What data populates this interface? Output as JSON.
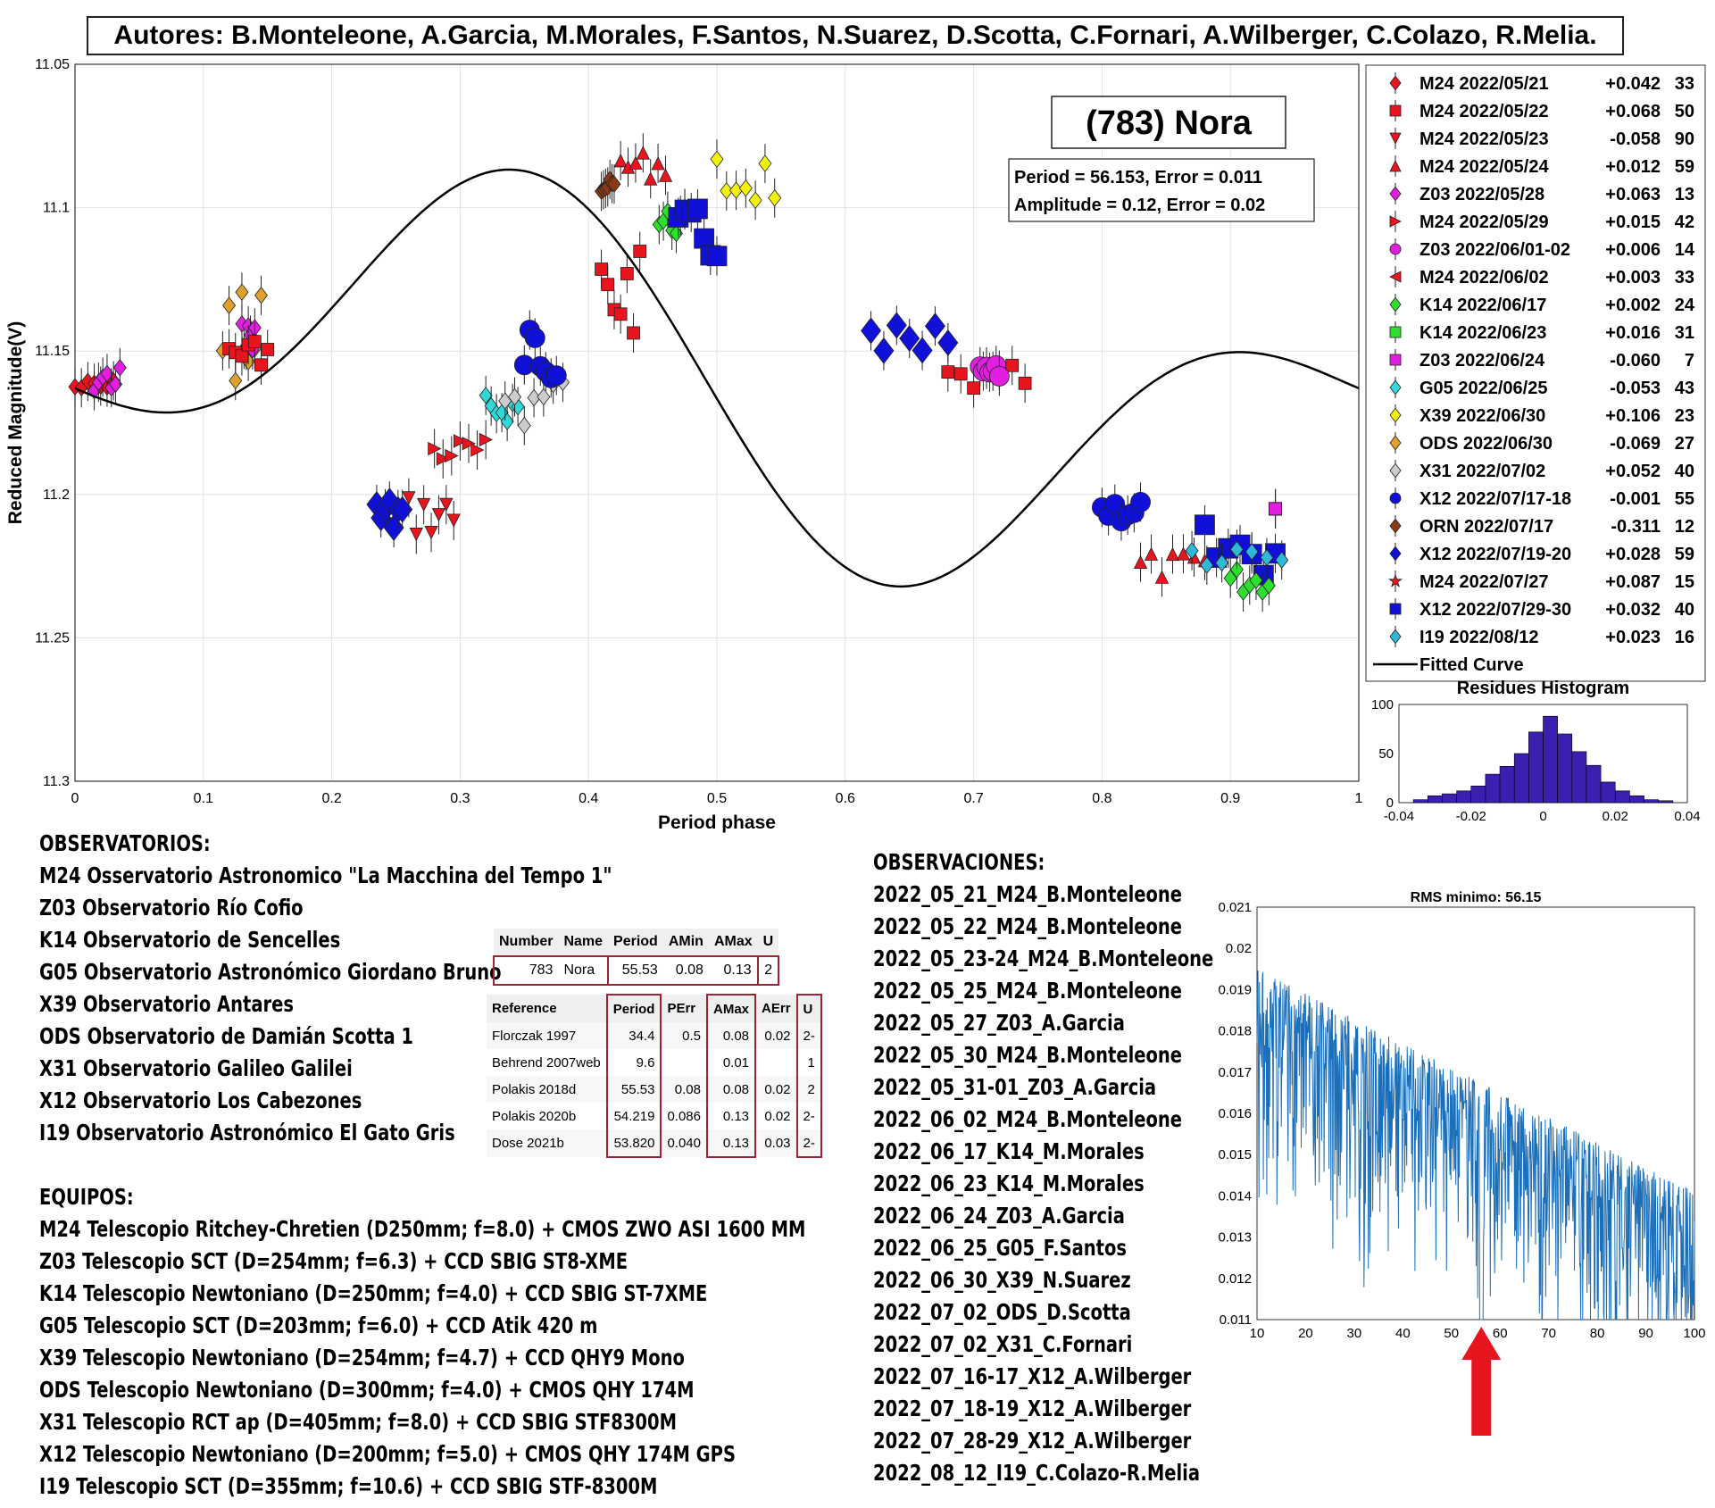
{
  "authors": "Autores: B.Monteleone, A.Garcia, M.Morales, F.Santos, N.Suarez, D.Scotta, C.Fornari, A.Wilberger, C.Colazo, R.Melia.",
  "chart_data": [
    {
      "type": "scatter",
      "title": "(783) Nora",
      "period_text": "Period =  56.153, Error = 0.011",
      "amplitude_text": "Amplitude = 0.12, Error = 0.02",
      "xlabel": "Period phase",
      "ylabel": "Reduced Magnitude(V)",
      "xlim": [
        0,
        1
      ],
      "ylim": [
        11.05,
        11.3
      ],
      "y_inverted": true,
      "x_ticks": [
        "0",
        "0.1",
        "0.2",
        "0.3",
        "0.4",
        "0.5",
        "0.6",
        "0.7",
        "0.8",
        "0.9",
        "1"
      ],
      "y_ticks": [
        "11.05",
        "11.1",
        "11.15",
        "11.2",
        "11.25",
        "11.3"
      ],
      "grid": true,
      "legend_position": "top-right",
      "legend": [
        {
          "label": "M24 2022/05/21",
          "offset": "+0.042",
          "n": "33",
          "color": "#e8141e",
          "marker": "diamond"
        },
        {
          "label": "M24 2022/05/22",
          "offset": "+0.068",
          "n": "50",
          "color": "#e8141e",
          "marker": "square"
        },
        {
          "label": "M24 2022/05/23",
          "offset": "-0.058",
          "n": "90",
          "color": "#e8141e",
          "marker": "tri-down"
        },
        {
          "label": "M24 2022/05/24",
          "offset": "+0.012",
          "n": "59",
          "color": "#e8141e",
          "marker": "tri-up"
        },
        {
          "label": "Z03 2022/05/28",
          "offset": "+0.063",
          "n": "13",
          "color": "#e21fe0",
          "marker": "diamond"
        },
        {
          "label": "M24 2022/05/29",
          "offset": "+0.015",
          "n": "42",
          "color": "#e8141e",
          "marker": "tri-right"
        },
        {
          "label": "Z03 2022/06/01-02",
          "offset": "+0.006",
          "n": "14",
          "color": "#e21fe0",
          "marker": "circle"
        },
        {
          "label": "M24 2022/06/02",
          "offset": "+0.003",
          "n": "33",
          "color": "#e8141e",
          "marker": "tri-left"
        },
        {
          "label": "K14 2022/06/17",
          "offset": "+0.002",
          "n": "24",
          "color": "#2ee02e",
          "marker": "diamond"
        },
        {
          "label": "K14 2022/06/23",
          "offset": "+0.016",
          "n": "31",
          "color": "#2ee02e",
          "marker": "square"
        },
        {
          "label": "Z03 2022/06/24",
          "offset": "-0.060",
          "n": "7",
          "color": "#e21fe0",
          "marker": "square"
        },
        {
          "label": "G05 2022/06/25",
          "offset": "-0.053",
          "n": "43",
          "color": "#30d8d8",
          "marker": "diamond"
        },
        {
          "label": "X39 2022/06/30",
          "offset": "+0.106",
          "n": "23",
          "color": "#f2f20a",
          "marker": "diamond"
        },
        {
          "label": "ODS 2022/06/30",
          "offset": "-0.069",
          "n": "27",
          "color": "#e0a030",
          "marker": "diamond"
        },
        {
          "label": "X31 2022/07/02",
          "offset": "+0.052",
          "n": "40",
          "color": "#cccccc",
          "marker": "diamond"
        },
        {
          "label": "X12 2022/07/17-18",
          "offset": "-0.001",
          "n": "55",
          "color": "#1010d8",
          "marker": "circle"
        },
        {
          "label": "ORN 2022/07/17",
          "offset": "-0.311",
          "n": "12",
          "color": "#8b3a16",
          "marker": "diamond"
        },
        {
          "label": "X12 2022/07/19-20",
          "offset": "+0.028",
          "n": "59",
          "color": "#1010d8",
          "marker": "diamond"
        },
        {
          "label": "M24 2022/07/27",
          "offset": "+0.087",
          "n": "15",
          "color": "#e8141e",
          "marker": "star"
        },
        {
          "label": "X12 2022/07/29-30",
          "offset": "+0.032",
          "n": "40",
          "color": "#1010d8",
          "marker": "square"
        },
        {
          "label": "I19 2022/08/12",
          "offset": "+0.023",
          "n": "16",
          "color": "#30b8d8",
          "marker": "diamond"
        }
      ],
      "fitted_curve_label": "Fitted Curve",
      "observation_clusters": [
        {
          "series": 0,
          "x": [
            0.0,
            0.03
          ],
          "y": [
            11.16,
            11.165
          ]
        },
        {
          "series": 4,
          "x": [
            0.015,
            0.035
          ],
          "y": [
            11.155,
            11.165
          ]
        },
        {
          "series": 13,
          "x": [
            0.115,
            0.145
          ],
          "y": [
            11.12,
            11.18
          ]
        },
        {
          "series": 4,
          "x": [
            0.13,
            0.14
          ],
          "y": [
            11.14,
            11.15
          ]
        },
        {
          "series": 1,
          "x": [
            0.12,
            0.15
          ],
          "y": [
            11.145,
            11.155
          ]
        },
        {
          "series": 17,
          "x": [
            0.235,
            0.255
          ],
          "y": [
            11.2,
            11.215
          ]
        },
        {
          "series": 2,
          "x": [
            0.26,
            0.295
          ],
          "y": [
            11.2,
            11.215
          ]
        },
        {
          "series": 5,
          "x": [
            0.28,
            0.32
          ],
          "y": [
            11.18,
            11.19
          ]
        },
        {
          "series": 11,
          "x": [
            0.32,
            0.345
          ],
          "y": [
            11.165,
            11.175
          ]
        },
        {
          "series": 14,
          "x": [
            0.335,
            0.38
          ],
          "y": [
            11.155,
            11.18
          ]
        },
        {
          "series": 15,
          "x": [
            0.35,
            0.375
          ],
          "y": [
            11.14,
            11.16
          ]
        },
        {
          "series": 16,
          "x": [
            0.41,
            0.42
          ],
          "y": [
            11.09,
            11.095
          ]
        },
        {
          "series": 1,
          "x": [
            0.41,
            0.44
          ],
          "y": [
            11.115,
            11.145
          ]
        },
        {
          "series": 3,
          "x": [
            0.425,
            0.46
          ],
          "y": [
            11.08,
            11.09
          ]
        },
        {
          "series": 8,
          "x": [
            0.455,
            0.475
          ],
          "y": [
            11.1,
            11.11
          ]
        },
        {
          "series": 12,
          "x": [
            0.5,
            0.545
          ],
          "y": [
            11.08,
            11.1
          ]
        },
        {
          "series": 19,
          "x": [
            0.47,
            0.5
          ],
          "y": [
            11.1,
            11.12
          ]
        },
        {
          "series": 17,
          "x": [
            0.62,
            0.68
          ],
          "y": [
            11.14,
            11.16
          ]
        },
        {
          "series": 1,
          "x": [
            0.68,
            0.74
          ],
          "y": [
            11.155,
            11.165
          ]
        },
        {
          "series": 6,
          "x": [
            0.705,
            0.72
          ],
          "y": [
            11.155,
            11.16
          ]
        },
        {
          "series": 15,
          "x": [
            0.8,
            0.83
          ],
          "y": [
            11.2,
            11.21
          ]
        },
        {
          "series": 3,
          "x": [
            0.83,
            0.88
          ],
          "y": [
            11.22,
            11.23
          ]
        },
        {
          "series": 19,
          "x": [
            0.88,
            0.935
          ],
          "y": [
            11.21,
            11.23
          ]
        },
        {
          "series": 8,
          "x": [
            0.9,
            0.93
          ],
          "y": [
            11.225,
            11.235
          ]
        },
        {
          "series": 20,
          "x": [
            0.87,
            0.94
          ],
          "y": [
            11.215,
            11.225
          ]
        },
        {
          "series": 10,
          "x": [
            0.935,
            0.935
          ],
          "y": [
            11.205,
            11.205
          ]
        }
      ]
    },
    {
      "type": "bar",
      "title": "Residues Histogram",
      "xlim": [
        -0.04,
        0.04
      ],
      "ylim": [
        0,
        100
      ],
      "x_ticks": [
        "-0.04",
        "-0.02",
        "0",
        "0.02",
        "0.04"
      ],
      "y_ticks": [
        "0",
        "50",
        "100"
      ],
      "color": "#3a1fb0",
      "bin_width": 0.004,
      "bins": [
        -0.034,
        -0.03,
        -0.026,
        -0.022,
        -0.018,
        -0.014,
        -0.01,
        -0.006,
        -0.002,
        0.002,
        0.006,
        0.01,
        0.014,
        0.018,
        0.022,
        0.026,
        0.03,
        0.034
      ],
      "values": [
        3,
        7,
        9,
        12,
        17,
        29,
        37,
        50,
        72,
        88,
        70,
        52,
        38,
        21,
        12,
        7,
        3,
        2
      ]
    },
    {
      "type": "line",
      "title": "RMS minimo: 56.15",
      "xlim": [
        10,
        100
      ],
      "ylim": [
        0.011,
        0.021
      ],
      "x_ticks": [
        "10",
        "20",
        "30",
        "40",
        "50",
        "60",
        "70",
        "80",
        "90",
        "100"
      ],
      "y_ticks": [
        "0.011",
        "0.012",
        "0.013",
        "0.014",
        "0.015",
        "0.016",
        "0.017",
        "0.018",
        "0.019",
        "0.02",
        "0.021"
      ],
      "color": "#1a6fba",
      "minimum_x": 56.15,
      "arrow_color": "#e8141e"
    }
  ],
  "observatorios": {
    "heading": "OBSERVATORIOS:",
    "items": [
      "M24 Osservatorio Astronomico \"La Macchina del Tempo 1\"",
      "Z03 Observatorio Río Cofio",
      "K14 Observatorio de Sencelles",
      "G05 Observatorio Astronómico Giordano Bruno",
      "X39 Observatorio Antares",
      "ODS Observatorio de Damián Scotta 1",
      "X31 Observatorio Galileo Galilei",
      "X12 Observatorio Los Cabezones",
      "I19 Observatorio Astronómico El Gato Gris"
    ]
  },
  "equipos": {
    "heading": "EQUIPOS:",
    "items": [
      "M24 Telescopio Ritchey-Chretien (D250mm; f=8.0) + CMOS ZWO ASI 1600 MM",
      "Z03 Telescopio SCT (D=254mm; f=6.3) + CCD SBIG ST8-XME",
      "K14 Telescopio Newtoniano (D=250mm; f=4.0) + CCD SBIG ST-7XME",
      "G05 Telescopio SCT (D=203mm; f=6.0) + CCD Atik 420 m",
      "X39 Telescopio Newtoniano (D=254mm; f=4.7) + CCD QHY9 Mono",
      "ODS Telescopio Newtoniano (D=300mm; f=4.0) + CMOS QHY 174M",
      "X31 Telescopio RCT ap (D=405mm; f=8.0) + CCD SBIG STF8300M",
      "X12 Telescopio Newtoniano (D=200mm; f=5.0) + CMOS QHY 174M GPS",
      "I19 Telescopio SCT (D=355mm; f=10.6) + CCD SBIG STF-8300M"
    ]
  },
  "observaciones": {
    "heading": "OBSERVACIONES:",
    "items": [
      "2022_05_21_M24_B.Monteleone",
      "2022_05_22_M24_B.Monteleone",
      "2022_05_23-24_M24_B.Monteleone",
      "2022_05_25_M24_B.Monteleone",
      "2022_05_27_Z03_A.Garcia",
      "2022_05_30_M24_B.Monteleone",
      "2022_05_31-01_Z03_A.Garcia",
      "2022_06_02_M24_B.Monteleone",
      "2022_06_17_K14_M.Morales",
      "2022_06_23_K14_M.Morales",
      "2022_06_24_Z03_A.Garcia",
      "2022_06_25_G05_F.Santos",
      "2022_06_30_X39_N.Suarez",
      "2022_07_02_ODS_D.Scotta",
      "2022_07_02_X31_C.Fornari",
      "2022_07_16-17_X12_A.Wilberger",
      "2022_07_18-19_X12_A.Wilberger",
      "2022_07_28-29_X12_A.Wilberger",
      "2022_08_12_I19_C.Colazo-R.Melia"
    ]
  },
  "lcdb": {
    "head": [
      "Number",
      "Name",
      "Period",
      "AMin",
      "AMax",
      "U"
    ],
    "row": [
      "783",
      "Nora",
      "55.53",
      "0.08",
      "0.13",
      "2"
    ]
  },
  "references": {
    "head": [
      "Reference",
      "Period",
      "PErr",
      "AMax",
      "AErr",
      "U"
    ],
    "rows": [
      [
        "Florczak 1997",
        "34.4",
        "0.5",
        "0.08",
        "0.02",
        "2-"
      ],
      [
        "Behrend 2007web",
        "9.6",
        "",
        "0.01",
        "",
        "1"
      ],
      [
        "Polakis 2018d",
        "55.53",
        "0.08",
        "0.08",
        "0.02",
        "2"
      ],
      [
        "Polakis 2020b",
        "54.219",
        "0.086",
        "0.13",
        "0.02",
        "2-"
      ],
      [
        "Dose 2021b",
        "53.820",
        "0.040",
        "0.13",
        "0.03",
        "2-"
      ]
    ]
  }
}
